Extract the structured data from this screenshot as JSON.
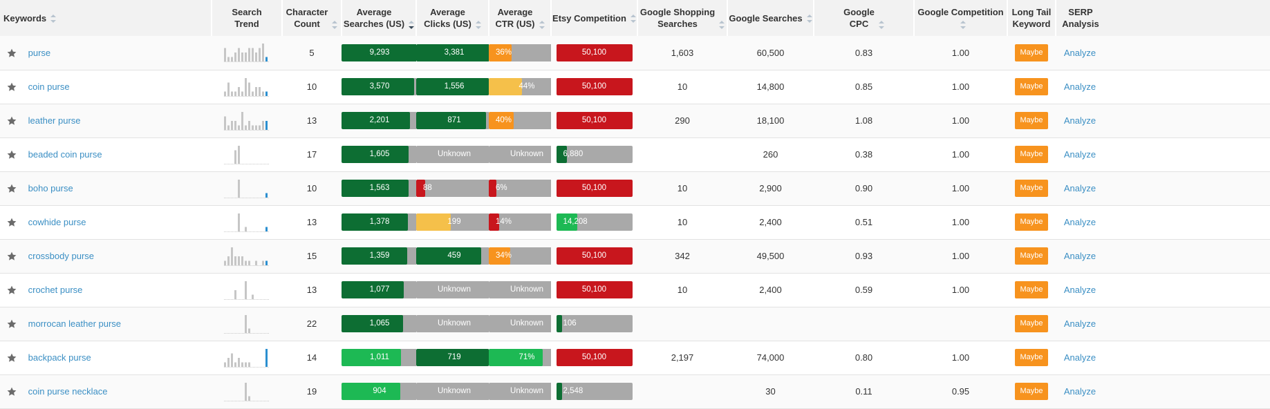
{
  "headers": {
    "keywords": "Keywords",
    "search_trend": [
      "Search",
      "Trend"
    ],
    "char_count": [
      "Character",
      "Count"
    ],
    "avg_searches": [
      "Average",
      "Searches (US)"
    ],
    "avg_clicks": [
      "Average",
      "Clicks (US)"
    ],
    "avg_ctr": [
      "Average",
      "CTR (US)"
    ],
    "etsy_comp": "Etsy Competition",
    "gshop": [
      "Google Shopping",
      "Searches"
    ],
    "gsearch": "Google Searches",
    "gcpc": [
      "Google",
      "CPC"
    ],
    "gcomp": "Google Competition",
    "longtail": [
      "Long Tail",
      "Keyword"
    ],
    "serp": [
      "SERP",
      "Analysis"
    ]
  },
  "colors": {
    "dark_green": "#0d6e33",
    "bright_green": "#1db954",
    "orange": "#f7931e",
    "yellow": "#f5c04a",
    "red": "#c8161d",
    "gray": "#a9a9a9",
    "link": "#3b8fc4"
  },
  "rows": [
    {
      "keyword": "purse",
      "char_count": "5",
      "trend": [
        3,
        1,
        1,
        2,
        3,
        2,
        2,
        3,
        3,
        2,
        3,
        4,
        1
      ],
      "searches": {
        "text": "9,293",
        "pct": 100,
        "color": "dark_green"
      },
      "clicks": {
        "text": "3,381",
        "pct": 100,
        "color": "dark_green"
      },
      "ctr": {
        "text": "36%",
        "pct": 30,
        "color": "orange"
      },
      "etsy": {
        "text": "50,100",
        "pct": 100,
        "color": "red"
      },
      "gshop": "1,603",
      "gsearch": "60,500",
      "gcpc": "0.83",
      "gcomp": "1.00",
      "longtail": "Maybe",
      "serp": "Analyze"
    },
    {
      "keyword": "coin purse",
      "char_count": "10",
      "trend": [
        1,
        3,
        1,
        1,
        2,
        1,
        4,
        3,
        1,
        2,
        2,
        1,
        1
      ],
      "searches": {
        "text": "3,570",
        "pct": 95,
        "color": "dark_green"
      },
      "clicks": {
        "text": "1,556",
        "pct": 95,
        "color": "dark_green"
      },
      "ctr": {
        "text": "44%",
        "pct": 44,
        "color": "yellow"
      },
      "etsy": {
        "text": "50,100",
        "pct": 100,
        "color": "red"
      },
      "gshop": "10",
      "gsearch": "14,800",
      "gcpc": "0.85",
      "gcomp": "1.00",
      "longtail": "Maybe",
      "serp": "Analyze"
    },
    {
      "keyword": "leather purse",
      "char_count": "13",
      "trend": [
        3,
        1,
        2,
        2,
        1,
        4,
        1,
        2,
        1,
        1,
        1,
        2,
        2
      ],
      "searches": {
        "text": "2,201",
        "pct": 90,
        "color": "dark_green"
      },
      "clicks": {
        "text": "871",
        "pct": 92,
        "color": "dark_green"
      },
      "ctr": {
        "text": "40%",
        "pct": 33,
        "color": "orange"
      },
      "etsy": {
        "text": "50,100",
        "pct": 100,
        "color": "red"
      },
      "gshop": "290",
      "gsearch": "18,100",
      "gcpc": "1.08",
      "gcomp": "1.00",
      "longtail": "Maybe",
      "serp": "Analyze"
    },
    {
      "keyword": "beaded coin purse",
      "char_count": "17",
      "trend": [
        0,
        0,
        0,
        3,
        4,
        0,
        0,
        0,
        0,
        0,
        0,
        0,
        0
      ],
      "searches": {
        "text": "1,605",
        "pct": 88,
        "color": "dark_green"
      },
      "clicks": {
        "text": "Unknown",
        "pct": 0,
        "color": "gray"
      },
      "ctr": {
        "text": "Unknown",
        "pct": 0,
        "color": "gray"
      },
      "etsy": {
        "text": "6,880",
        "pct": 14,
        "color": "dark_green"
      },
      "gshop": "",
      "gsearch": "260",
      "gcpc": "0.38",
      "gcomp": "1.00",
      "longtail": "Maybe",
      "serp": "Analyze"
    },
    {
      "keyword": "boho purse",
      "char_count": "10",
      "trend": [
        0,
        0,
        0,
        0,
        4,
        0,
        0,
        0,
        0,
        0,
        0,
        0,
        1
      ],
      "searches": {
        "text": "1,563",
        "pct": 88,
        "color": "dark_green"
      },
      "clicks": {
        "text": "88",
        "pct": 12,
        "color": "red"
      },
      "ctr": {
        "text": "6%",
        "pct": 10,
        "color": "red"
      },
      "etsy": {
        "text": "50,100",
        "pct": 100,
        "color": "red"
      },
      "gshop": "10",
      "gsearch": "2,900",
      "gcpc": "0.90",
      "gcomp": "1.00",
      "longtail": "Maybe",
      "serp": "Analyze"
    },
    {
      "keyword": "cowhide purse",
      "char_count": "13",
      "trend": [
        0,
        0,
        0,
        0,
        4,
        0,
        1,
        0,
        0,
        0,
        0,
        0,
        1
      ],
      "searches": {
        "text": "1,378",
        "pct": 87,
        "color": "dark_green"
      },
      "clicks": {
        "text": "199",
        "pct": 45,
        "color": "yellow"
      },
      "ctr": {
        "text": "14%",
        "pct": 14,
        "color": "red"
      },
      "etsy": {
        "text": "14,208",
        "pct": 28,
        "color": "bright_green"
      },
      "gshop": "10",
      "gsearch": "2,400",
      "gcpc": "0.51",
      "gcomp": "1.00",
      "longtail": "Maybe",
      "serp": "Analyze"
    },
    {
      "keyword": "crossbody purse",
      "char_count": "15",
      "trend": [
        1,
        2,
        4,
        2,
        2,
        2,
        1,
        1,
        0,
        1,
        0,
        1,
        1
      ],
      "searches": {
        "text": "1,359",
        "pct": 86,
        "color": "dark_green"
      },
      "clicks": {
        "text": "459",
        "pct": 85,
        "color": "dark_green"
      },
      "ctr": {
        "text": "34%",
        "pct": 28,
        "color": "orange"
      },
      "etsy": {
        "text": "50,100",
        "pct": 100,
        "color": "red"
      },
      "gshop": "342",
      "gsearch": "49,500",
      "gcpc": "0.93",
      "gcomp": "1.00",
      "longtail": "Maybe",
      "serp": "Analyze"
    },
    {
      "keyword": "crochet purse",
      "char_count": "13",
      "trend": [
        0,
        0,
        0,
        2,
        0,
        0,
        4,
        0,
        1,
        0,
        0,
        0,
        0
      ],
      "searches": {
        "text": "1,077",
        "pct": 82,
        "color": "dark_green"
      },
      "clicks": {
        "text": "Unknown",
        "pct": 0,
        "color": "gray"
      },
      "ctr": {
        "text": "Unknown",
        "pct": 0,
        "color": "gray"
      },
      "etsy": {
        "text": "50,100",
        "pct": 100,
        "color": "red"
      },
      "gshop": "10",
      "gsearch": "2,400",
      "gcpc": "0.59",
      "gcomp": "1.00",
      "longtail": "Maybe",
      "serp": "Analyze"
    },
    {
      "keyword": "morrocan leather purse",
      "char_count": "22",
      "trend": [
        0,
        0,
        0,
        0,
        0,
        0,
        4,
        1,
        0,
        0,
        0,
        0,
        0
      ],
      "searches": {
        "text": "1,065",
        "pct": 81,
        "color": "dark_green"
      },
      "clicks": {
        "text": "Unknown",
        "pct": 0,
        "color": "gray"
      },
      "ctr": {
        "text": "Unknown",
        "pct": 0,
        "color": "gray"
      },
      "etsy": {
        "text": "106",
        "pct": 8,
        "color": "dark_green"
      },
      "gshop": "",
      "gsearch": "",
      "gcpc": "",
      "gcomp": "",
      "longtail": "Maybe",
      "serp": "Analyze"
    },
    {
      "keyword": "backpack purse",
      "char_count": "14",
      "trend": [
        1,
        2,
        3,
        1,
        2,
        1,
        1,
        1,
        0,
        0,
        0,
        0,
        4
      ],
      "searches": {
        "text": "1,011",
        "pct": 78,
        "color": "bright_green"
      },
      "clicks": {
        "text": "719",
        "pct": 95,
        "color": "dark_green"
      },
      "ctr": {
        "text": "71%",
        "pct": 71,
        "color": "bright_green"
      },
      "etsy": {
        "text": "50,100",
        "pct": 100,
        "color": "red"
      },
      "gshop": "2,197",
      "gsearch": "74,000",
      "gcpc": "0.80",
      "gcomp": "1.00",
      "longtail": "Maybe",
      "serp": "Analyze"
    },
    {
      "keyword": "coin purse necklace",
      "char_count": "19",
      "trend": [
        0,
        0,
        0,
        0,
        0,
        0,
        4,
        1,
        0,
        0,
        0,
        0,
        0
      ],
      "searches": {
        "text": "904",
        "pct": 77,
        "color": "bright_green"
      },
      "clicks": {
        "text": "Unknown",
        "pct": 0,
        "color": "gray"
      },
      "ctr": {
        "text": "Unknown",
        "pct": 0,
        "color": "gray"
      },
      "etsy": {
        "text": "2,548",
        "pct": 8,
        "color": "dark_green"
      },
      "gshop": "",
      "gsearch": "30",
      "gcpc": "0.11",
      "gcomp": "0.95",
      "longtail": "Maybe",
      "serp": "Analyze"
    }
  ]
}
